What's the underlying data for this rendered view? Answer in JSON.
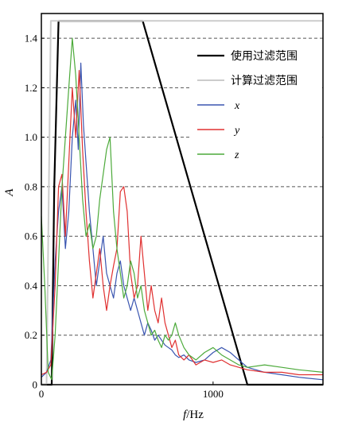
{
  "chart_data": {
    "type": "line",
    "xlabel_var": "f",
    "xlabel_unit": "/Hz",
    "ylabel": "A",
    "xlim": [
      0,
      1640
    ],
    "ylim": [
      0,
      1.5
    ],
    "xticks": [
      0,
      1000
    ],
    "xtick_labels": [
      "0",
      "1000"
    ],
    "yticks": [
      0,
      0.2,
      0.4,
      0.6,
      0.8,
      1.0,
      1.2,
      1.4
    ],
    "ytick_labels": [
      "0",
      "0.2",
      "0.4",
      "0.6",
      "0.8",
      "1.0",
      "1.2",
      "1.4"
    ],
    "grid": "horizontal dashed",
    "legend_position": "top-right",
    "series": [
      {
        "name": "使用过滤范围",
        "color": "#000000",
        "width": 2.2,
        "italic": false,
        "points": [
          [
            0,
            0
          ],
          [
            60,
            0
          ],
          [
            75,
            0.8
          ],
          [
            100,
            1.47
          ],
          [
            120,
            1.47
          ],
          [
            590,
            1.47
          ],
          [
            1200,
            0
          ],
          [
            1640,
            0
          ]
        ]
      },
      {
        "name": "计算过滤范围",
        "color": "#cccccc",
        "width": 2.0,
        "italic": false,
        "points": [
          [
            0,
            0
          ],
          [
            30,
            0
          ],
          [
            55,
            1.47
          ],
          [
            70,
            1.47
          ],
          [
            1640,
            1.47
          ]
        ]
      },
      {
        "name": "x",
        "color": "#3a55b0",
        "width": 1.2,
        "italic": true,
        "points": [
          [
            0,
            0.03
          ],
          [
            30,
            0.05
          ],
          [
            55,
            0.1
          ],
          [
            80,
            0.5
          ],
          [
            100,
            0.7
          ],
          [
            120,
            0.8
          ],
          [
            140,
            0.55
          ],
          [
            160,
            0.7
          ],
          [
            180,
            1.0
          ],
          [
            200,
            1.15
          ],
          [
            215,
            0.95
          ],
          [
            230,
            1.3
          ],
          [
            245,
            1.05
          ],
          [
            260,
            0.9
          ],
          [
            280,
            0.7
          ],
          [
            300,
            0.55
          ],
          [
            320,
            0.4
          ],
          [
            340,
            0.5
          ],
          [
            360,
            0.6
          ],
          [
            380,
            0.45
          ],
          [
            400,
            0.4
          ],
          [
            420,
            0.35
          ],
          [
            440,
            0.45
          ],
          [
            460,
            0.5
          ],
          [
            480,
            0.4
          ],
          [
            500,
            0.35
          ],
          [
            520,
            0.3
          ],
          [
            540,
            0.35
          ],
          [
            560,
            0.3
          ],
          [
            580,
            0.25
          ],
          [
            600,
            0.2
          ],
          [
            620,
            0.25
          ],
          [
            640,
            0.22
          ],
          [
            660,
            0.18
          ],
          [
            680,
            0.2
          ],
          [
            700,
            0.18
          ],
          [
            720,
            0.16
          ],
          [
            740,
            0.15
          ],
          [
            760,
            0.14
          ],
          [
            780,
            0.12
          ],
          [
            800,
            0.11
          ],
          [
            830,
            0.12
          ],
          [
            860,
            0.1
          ],
          [
            900,
            0.09
          ],
          [
            950,
            0.1
          ],
          [
            1000,
            0.13
          ],
          [
            1050,
            0.15
          ],
          [
            1100,
            0.13
          ],
          [
            1150,
            0.1
          ],
          [
            1200,
            0.07
          ],
          [
            1300,
            0.05
          ],
          [
            1400,
            0.04
          ],
          [
            1500,
            0.03
          ],
          [
            1640,
            0.02
          ]
        ]
      },
      {
        "name": "y",
        "color": "#e03030",
        "width": 1.2,
        "italic": true,
        "points": [
          [
            0,
            0.04
          ],
          [
            30,
            0.05
          ],
          [
            55,
            0.08
          ],
          [
            80,
            0.4
          ],
          [
            100,
            0.8
          ],
          [
            120,
            0.85
          ],
          [
            140,
            0.6
          ],
          [
            160,
            0.9
          ],
          [
            180,
            1.2
          ],
          [
            200,
            1.0
          ],
          [
            220,
            1.27
          ],
          [
            240,
            0.95
          ],
          [
            260,
            0.7
          ],
          [
            280,
            0.5
          ],
          [
            300,
            0.35
          ],
          [
            320,
            0.45
          ],
          [
            340,
            0.55
          ],
          [
            360,
            0.4
          ],
          [
            380,
            0.3
          ],
          [
            400,
            0.4
          ],
          [
            420,
            0.48
          ],
          [
            440,
            0.55
          ],
          [
            460,
            0.78
          ],
          [
            480,
            0.8
          ],
          [
            500,
            0.7
          ],
          [
            520,
            0.45
          ],
          [
            540,
            0.35
          ],
          [
            560,
            0.4
          ],
          [
            580,
            0.6
          ],
          [
            600,
            0.45
          ],
          [
            620,
            0.3
          ],
          [
            640,
            0.4
          ],
          [
            660,
            0.3
          ],
          [
            680,
            0.25
          ],
          [
            700,
            0.35
          ],
          [
            720,
            0.25
          ],
          [
            740,
            0.2
          ],
          [
            760,
            0.15
          ],
          [
            780,
            0.18
          ],
          [
            800,
            0.12
          ],
          [
            830,
            0.1
          ],
          [
            860,
            0.12
          ],
          [
            900,
            0.08
          ],
          [
            950,
            0.1
          ],
          [
            1000,
            0.09
          ],
          [
            1050,
            0.1
          ],
          [
            1100,
            0.08
          ],
          [
            1150,
            0.07
          ],
          [
            1200,
            0.06
          ],
          [
            1300,
            0.05
          ],
          [
            1400,
            0.05
          ],
          [
            1500,
            0.04
          ],
          [
            1640,
            0.04
          ]
        ]
      },
      {
        "name": "z",
        "color": "#4caa3a",
        "width": 1.2,
        "italic": true,
        "points": [
          [
            0,
            0.68
          ],
          [
            20,
            0.4
          ],
          [
            40,
            0.05
          ],
          [
            60,
            0.02
          ],
          [
            80,
            0.2
          ],
          [
            100,
            0.5
          ],
          [
            120,
            0.8
          ],
          [
            140,
            1.0
          ],
          [
            160,
            1.2
          ],
          [
            180,
            1.4
          ],
          [
            200,
            1.25
          ],
          [
            220,
            1.0
          ],
          [
            240,
            0.75
          ],
          [
            260,
            0.6
          ],
          [
            280,
            0.65
          ],
          [
            300,
            0.55
          ],
          [
            320,
            0.6
          ],
          [
            340,
            0.75
          ],
          [
            360,
            0.85
          ],
          [
            380,
            0.95
          ],
          [
            400,
            1.0
          ],
          [
            420,
            0.7
          ],
          [
            440,
            0.55
          ],
          [
            460,
            0.45
          ],
          [
            480,
            0.35
          ],
          [
            500,
            0.4
          ],
          [
            520,
            0.5
          ],
          [
            540,
            0.45
          ],
          [
            560,
            0.35
          ],
          [
            580,
            0.4
          ],
          [
            600,
            0.3
          ],
          [
            620,
            0.25
          ],
          [
            640,
            0.2
          ],
          [
            660,
            0.22
          ],
          [
            680,
            0.18
          ],
          [
            700,
            0.15
          ],
          [
            720,
            0.2
          ],
          [
            740,
            0.18
          ],
          [
            760,
            0.2
          ],
          [
            780,
            0.25
          ],
          [
            800,
            0.2
          ],
          [
            830,
            0.15
          ],
          [
            860,
            0.12
          ],
          [
            900,
            0.1
          ],
          [
            950,
            0.13
          ],
          [
            1000,
            0.15
          ],
          [
            1050,
            0.12
          ],
          [
            1100,
            0.1
          ],
          [
            1150,
            0.08
          ],
          [
            1200,
            0.07
          ],
          [
            1300,
            0.08
          ],
          [
            1400,
            0.07
          ],
          [
            1500,
            0.06
          ],
          [
            1640,
            0.05
          ]
        ]
      }
    ]
  }
}
